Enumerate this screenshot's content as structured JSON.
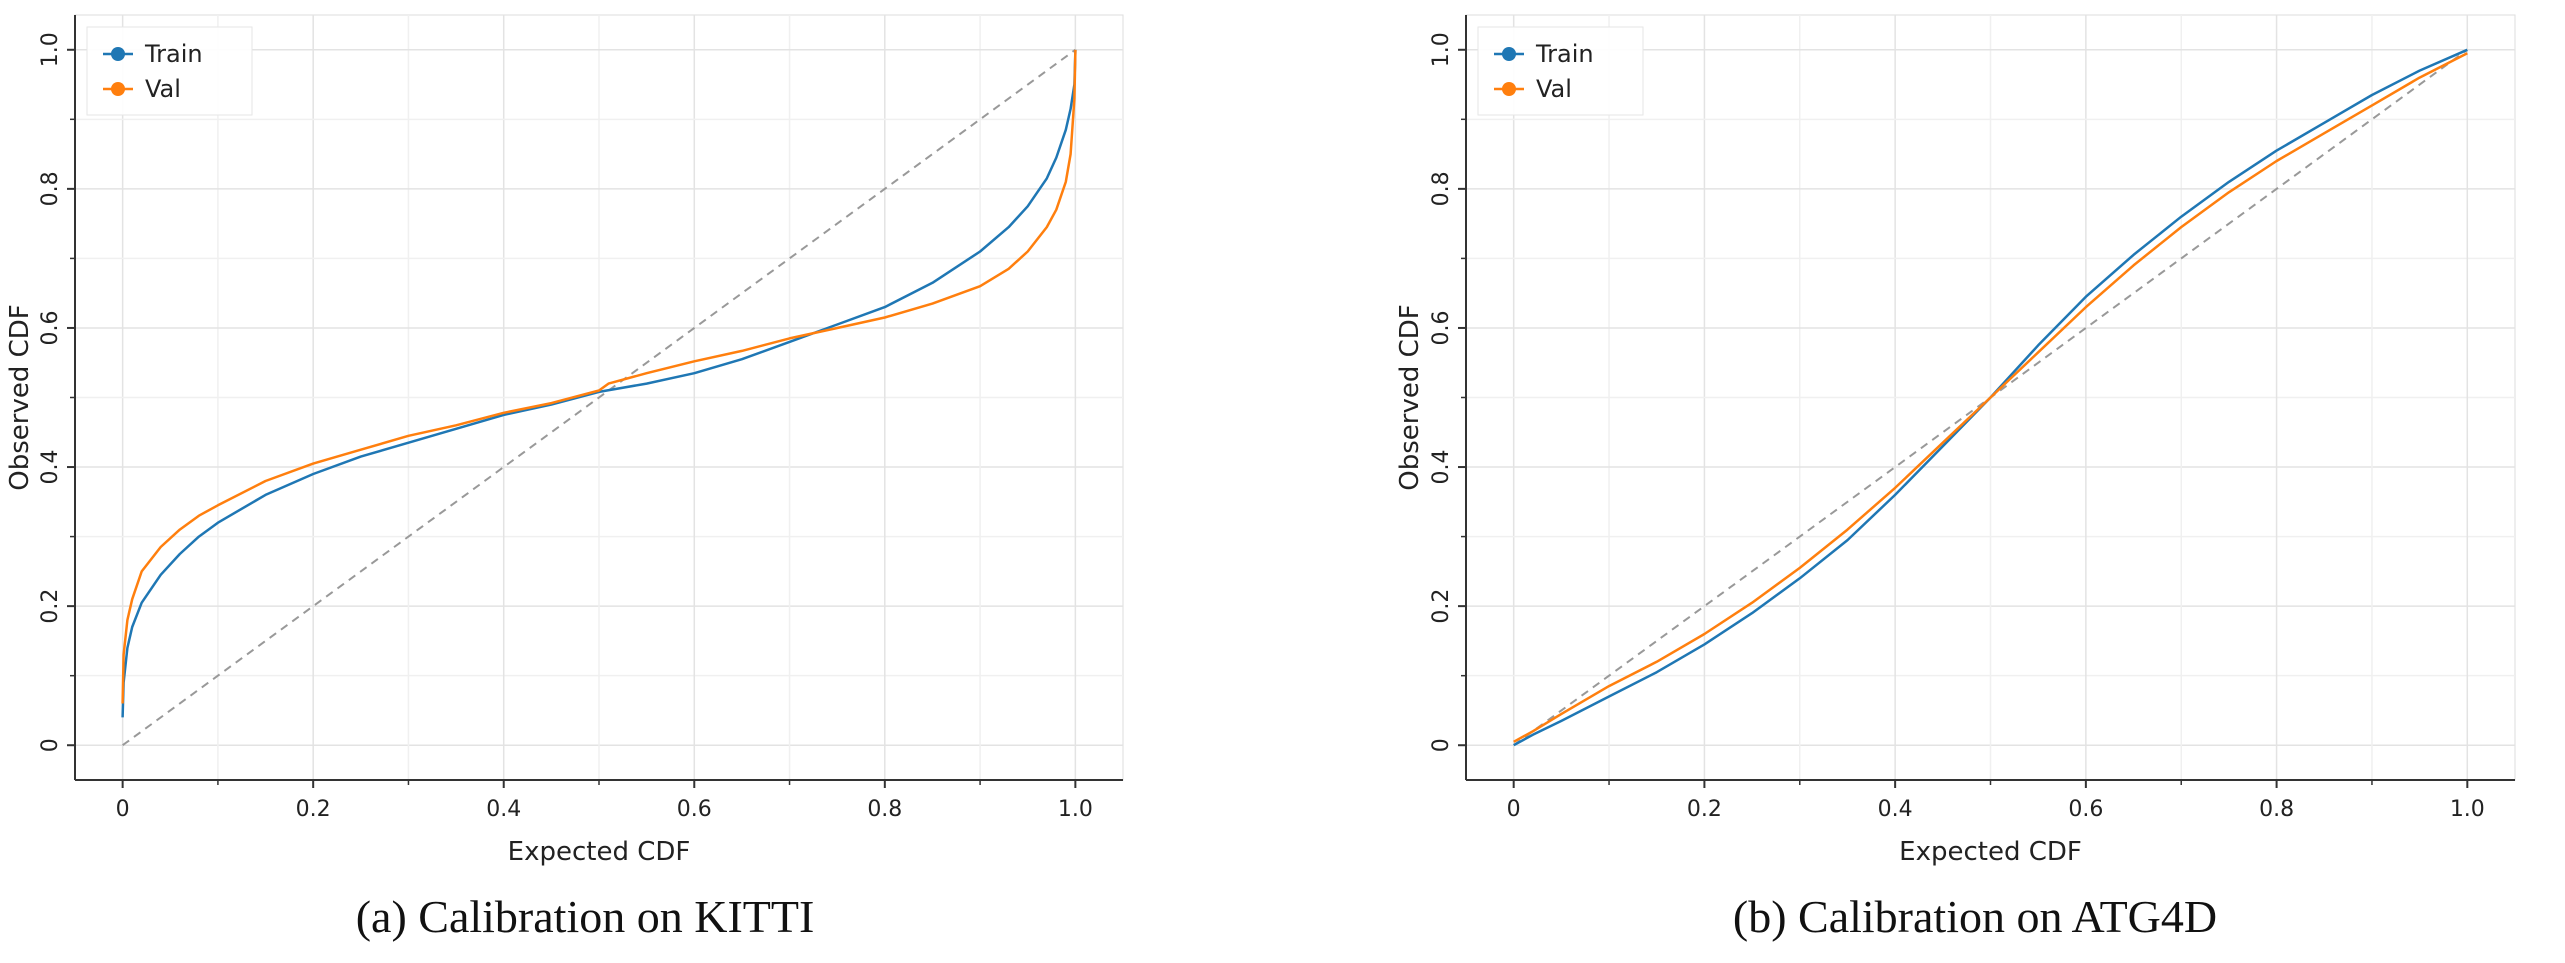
{
  "chart_data": [
    {
      "type": "line",
      "caption": "(a) Calibration on KITTI",
      "xlabel": "Expected CDF",
      "ylabel": "Observed CDF",
      "xlim": [
        -0.05,
        1.05
      ],
      "ylim": [
        -0.05,
        1.05
      ],
      "xticks": [
        0,
        0.2,
        0.4,
        0.6,
        0.8,
        1.0
      ],
      "xtick_labels": [
        "0",
        "0.2",
        "0.4",
        "0.6",
        "0.8",
        "1.0"
      ],
      "yticks": [
        0,
        0.2,
        0.4,
        0.6,
        0.8,
        1.0
      ],
      "ytick_labels": [
        "0",
        "0.2",
        "0.4",
        "0.6",
        "0.8",
        "1.0"
      ],
      "grid": true,
      "legend_position": "top-left",
      "reference_line": {
        "x": [
          0,
          1
        ],
        "y": [
          0,
          1
        ],
        "style": "dashed",
        "color": "#999999"
      },
      "series": [
        {
          "name": "Train",
          "color": "#1f77b4",
          "x": [
            0,
            0.001,
            0.005,
            0.01,
            0.02,
            0.04,
            0.06,
            0.08,
            0.1,
            0.15,
            0.2,
            0.25,
            0.3,
            0.35,
            0.4,
            0.45,
            0.5,
            0.55,
            0.6,
            0.65,
            0.7,
            0.75,
            0.8,
            0.85,
            0.9,
            0.93,
            0.95,
            0.97,
            0.98,
            0.99,
            0.995,
            0.999,
            1.0
          ],
          "y": [
            0.04,
            0.09,
            0.14,
            0.17,
            0.205,
            0.245,
            0.275,
            0.3,
            0.32,
            0.36,
            0.39,
            0.415,
            0.435,
            0.455,
            0.475,
            0.49,
            0.508,
            0.52,
            0.535,
            0.555,
            0.58,
            0.605,
            0.63,
            0.665,
            0.71,
            0.745,
            0.775,
            0.815,
            0.845,
            0.885,
            0.915,
            0.95,
            1.0
          ]
        },
        {
          "name": "Val",
          "color": "#ff7f0e",
          "x": [
            0,
            0.001,
            0.005,
            0.01,
            0.02,
            0.04,
            0.06,
            0.08,
            0.1,
            0.15,
            0.2,
            0.25,
            0.3,
            0.35,
            0.4,
            0.45,
            0.5,
            0.51,
            0.55,
            0.6,
            0.65,
            0.7,
            0.75,
            0.8,
            0.85,
            0.9,
            0.93,
            0.95,
            0.97,
            0.98,
            0.99,
            0.995,
            0.999,
            1.0
          ],
          "y": [
            0.06,
            0.13,
            0.18,
            0.21,
            0.25,
            0.285,
            0.31,
            0.33,
            0.345,
            0.38,
            0.405,
            0.425,
            0.445,
            0.46,
            0.478,
            0.492,
            0.51,
            0.52,
            0.535,
            0.552,
            0.567,
            0.585,
            0.6,
            0.615,
            0.635,
            0.66,
            0.685,
            0.71,
            0.745,
            0.77,
            0.81,
            0.85,
            0.93,
            1.0
          ]
        }
      ]
    },
    {
      "type": "line",
      "caption": "(b) Calibration on ATG4D",
      "xlabel": "Expected CDF",
      "ylabel": "Observed CDF",
      "xlim": [
        -0.05,
        1.05
      ],
      "ylim": [
        -0.05,
        1.05
      ],
      "xticks": [
        0,
        0.2,
        0.4,
        0.6,
        0.8,
        1.0
      ],
      "xtick_labels": [
        "0",
        "0.2",
        "0.4",
        "0.6",
        "0.8",
        "1.0"
      ],
      "yticks": [
        0,
        0.2,
        0.4,
        0.6,
        0.8,
        1.0
      ],
      "ytick_labels": [
        "0",
        "0.2",
        "0.4",
        "0.6",
        "0.8",
        "1.0"
      ],
      "grid": true,
      "legend_position": "top-left",
      "reference_line": {
        "x": [
          0,
          1
        ],
        "y": [
          0,
          1
        ],
        "style": "dashed",
        "color": "#999999"
      },
      "series": [
        {
          "name": "Train",
          "color": "#1f77b4",
          "x": [
            0,
            0.02,
            0.05,
            0.1,
            0.15,
            0.2,
            0.25,
            0.3,
            0.35,
            0.4,
            0.45,
            0.5,
            0.55,
            0.6,
            0.65,
            0.7,
            0.75,
            0.8,
            0.85,
            0.9,
            0.95,
            1.0
          ],
          "y": [
            0.0,
            0.015,
            0.035,
            0.07,
            0.105,
            0.145,
            0.19,
            0.24,
            0.295,
            0.36,
            0.43,
            0.5,
            0.575,
            0.645,
            0.705,
            0.76,
            0.81,
            0.855,
            0.895,
            0.935,
            0.97,
            1.0
          ]
        },
        {
          "name": "Val",
          "color": "#ff7f0e",
          "x": [
            0,
            0.02,
            0.05,
            0.1,
            0.15,
            0.2,
            0.25,
            0.3,
            0.35,
            0.4,
            0.45,
            0.5,
            0.55,
            0.6,
            0.65,
            0.7,
            0.75,
            0.8,
            0.85,
            0.9,
            0.95,
            1.0
          ],
          "y": [
            0.005,
            0.02,
            0.045,
            0.085,
            0.12,
            0.16,
            0.205,
            0.255,
            0.31,
            0.37,
            0.435,
            0.5,
            0.565,
            0.63,
            0.69,
            0.745,
            0.795,
            0.84,
            0.88,
            0.92,
            0.96,
            0.995
          ]
        }
      ]
    }
  ]
}
